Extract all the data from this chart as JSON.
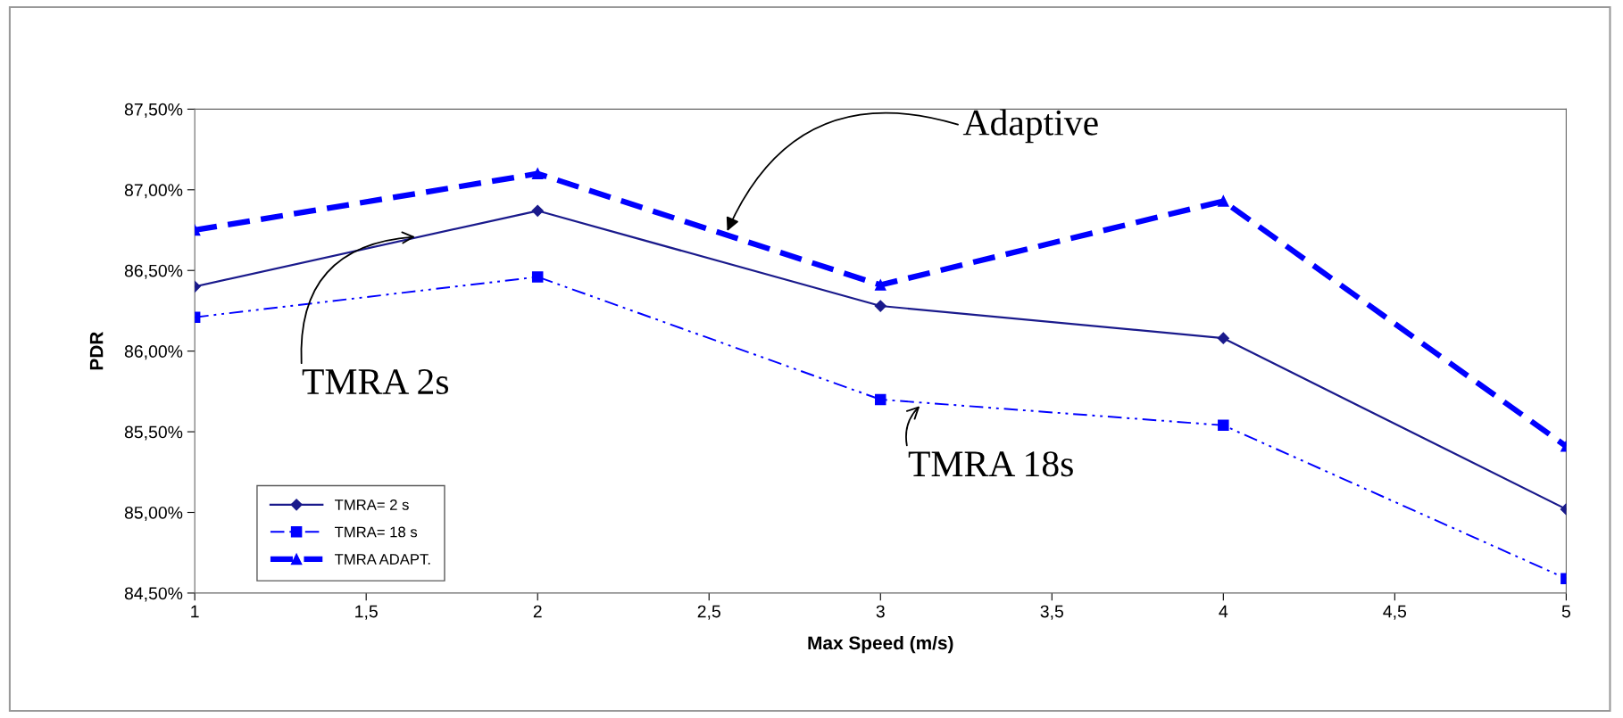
{
  "chart_data": {
    "type": "line",
    "xlabel": "Max Speed (m/s)",
    "ylabel": "PDR",
    "x": [
      1,
      2,
      3,
      4,
      5
    ],
    "series": [
      {
        "name": "TMRA= 2 s",
        "color": "#1a1a8c",
        "marker": "diamond",
        "line_style": "solid",
        "values": [
          86.4,
          86.87,
          86.28,
          86.08,
          85.02
        ]
      },
      {
        "name": "TMRA= 18 s",
        "color": "#0000ff",
        "marker": "square",
        "line_style": "dashdot",
        "values": [
          86.21,
          86.46,
          85.7,
          85.54,
          84.59
        ]
      },
      {
        "name": "TMRA ADAPT.",
        "color": "#0000ff",
        "marker": "triangle",
        "line_style": "dashed",
        "values": [
          86.75,
          87.1,
          86.41,
          86.93,
          85.41
        ]
      }
    ],
    "xlim": [
      1,
      5
    ],
    "xticks": [
      1,
      {
        "value": 1.5,
        "label": "1,5"
      },
      2,
      {
        "value": 2.5,
        "label": "2,5"
      },
      3,
      {
        "value": 3.5,
        "label": "3,5"
      },
      4,
      {
        "value": 4.5,
        "label": "4,5"
      },
      5
    ],
    "ylim": [
      84.5,
      87.5
    ],
    "yticks": [
      {
        "value": 84.5,
        "label": "84,50%"
      },
      {
        "value": 85.0,
        "label": "85,00%"
      },
      {
        "value": 85.5,
        "label": "85,50%"
      },
      {
        "value": 86.0,
        "label": "86,00%"
      },
      {
        "value": 86.5,
        "label": "86,50%"
      },
      {
        "value": 87.0,
        "label": "87,00%"
      },
      {
        "value": 87.5,
        "label": "87,50%"
      }
    ],
    "annotations": [
      {
        "text": "Adaptive",
        "x": 2.55,
        "y": 86.73
      },
      {
        "text": "TMRA 2s",
        "x": 1.65,
        "y": 86.71
      },
      {
        "text": "TMRA 18s",
        "x": 3.12,
        "y": 85.67
      }
    ],
    "grid": false,
    "legend": "bottom left"
  }
}
